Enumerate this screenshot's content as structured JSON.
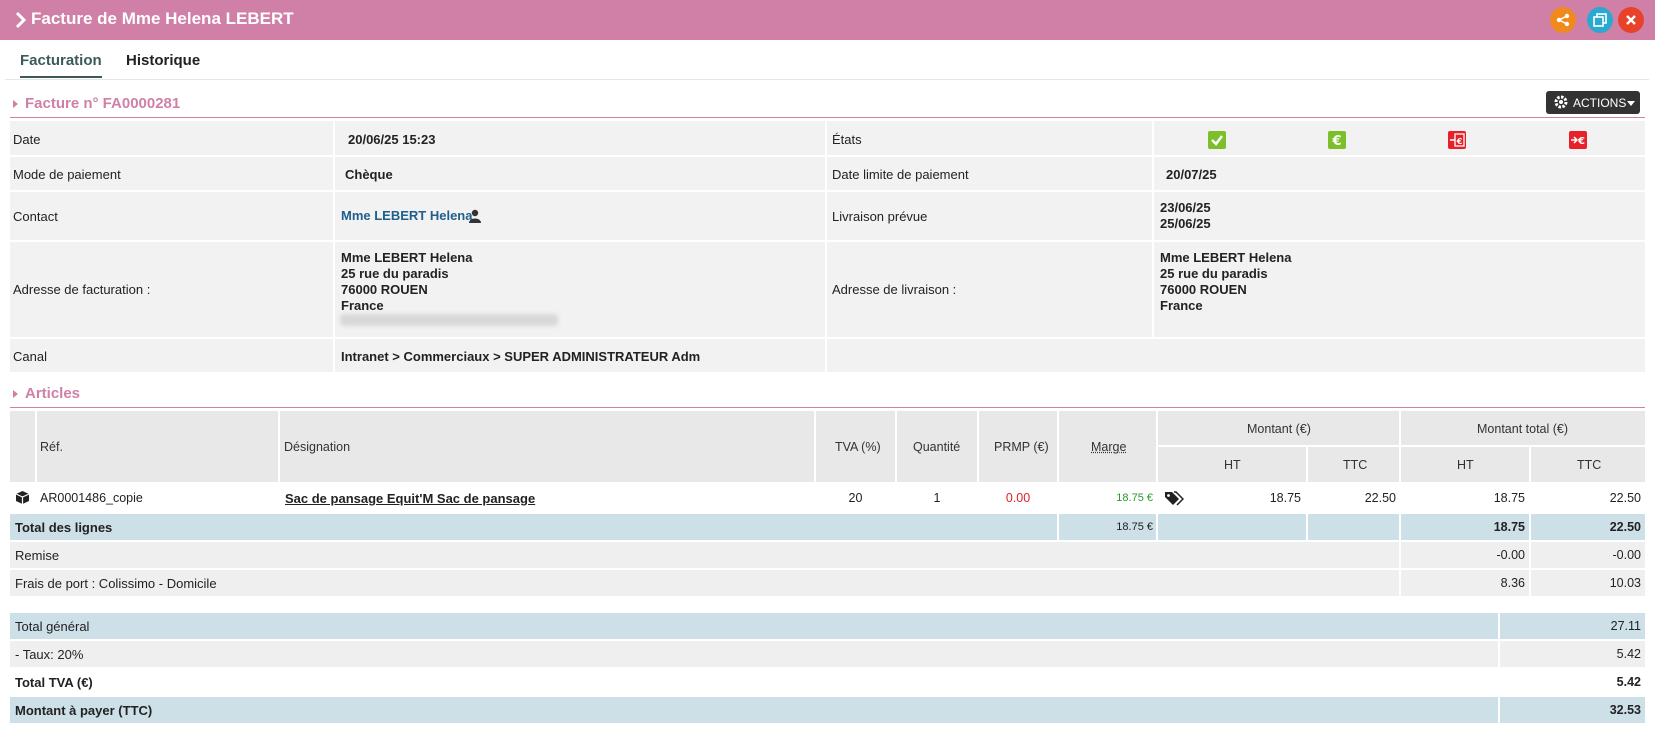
{
  "window": {
    "title": "Facture de Mme Helena LEBERT"
  },
  "tabs": [
    {
      "label": "Facturation"
    },
    {
      "label": "Historique"
    }
  ],
  "invoice": {
    "heading": "Facture n° FA0000281",
    "actions_label": "ACTIONS",
    "labels": {
      "date": "Date",
      "payment_mode": "Mode de paiement",
      "contact": "Contact",
      "billing_address": "Adresse de facturation :",
      "channel": "Canal",
      "states": "États",
      "due_date": "Date limite de paiement",
      "delivery_planned": "Livraison prévue",
      "delivery_address": "Adresse de livraison :"
    },
    "values": {
      "date": "20/06/25 15:23",
      "payment_mode": "Chèque",
      "contact": "Mme LEBERT Helena",
      "billing_name": "Mme LEBERT Helena",
      "billing_street": "25 rue du paradis",
      "billing_city": "76000 ROUEN",
      "billing_country": "France",
      "channel": "Intranet > Commerciaux > SUPER ADMINISTRATEUR Adm",
      "due_date": "20/07/25",
      "delivery_date_1": "23/06/25",
      "delivery_date_2": "25/06/25",
      "delivery_name": "Mme LEBERT Helena",
      "delivery_street": "25 rue du paradis",
      "delivery_city": "76000 ROUEN",
      "delivery_country": "France"
    },
    "state_colors": [
      "#7cbf2a",
      "#7cbf2a",
      "#e8202a",
      "#e8202a"
    ]
  },
  "articles": {
    "heading": "Articles",
    "headers": {
      "ref": "Réf.",
      "designation": "Désignation",
      "tva": "TVA (%)",
      "qty": "Quantité",
      "prmp": "PRMP (€)",
      "marge": "Marge",
      "montant": "Montant (€)",
      "montant_total": "Montant total (€)",
      "ht": "HT",
      "ttc": "TTC"
    },
    "row": {
      "ref": "AR0001486_copie",
      "designation": "Sac de pansage Equit'M Sac de pansage",
      "tva": "20",
      "qty": "1",
      "prmp": "0.00",
      "marge": "18.75 €",
      "ht": "18.75",
      "ttc": "22.50",
      "total_ht": "18.75",
      "total_ttc": "22.50"
    },
    "totals": {
      "lines_label": "Total des lignes",
      "lines_marge": "18.75 €",
      "lines_ht": "18.75",
      "lines_ttc": "22.50",
      "discount_label": "Remise",
      "discount_ht": "-0.00",
      "discount_ttc": "-0.00",
      "shipping_label": "Frais de port : Colissimo - Domicile",
      "shipping_ht": "8.36",
      "shipping_ttc": "10.03"
    },
    "summary": {
      "general_label": "Total général",
      "general_value": "27.11",
      "rate_label": "- Taux: 20%",
      "rate_value": "5.42",
      "tva_label": "Total TVA (€)",
      "tva_value": "5.42",
      "pay_label": "Montant à payer (TTC)",
      "pay_value": "32.53"
    }
  }
}
